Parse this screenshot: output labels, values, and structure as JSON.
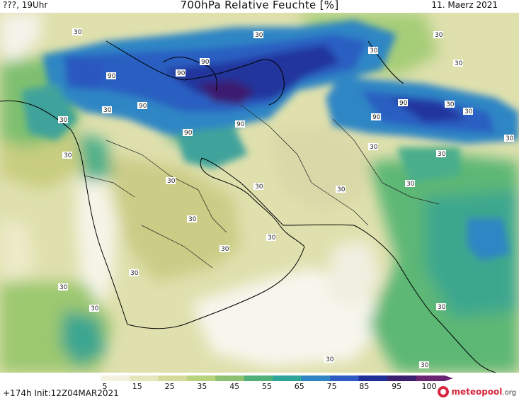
{
  "header": {
    "left_label": "???, 19Uhr",
    "title": "700hPa Relative Feuchte [%]",
    "date": "11. Maerz 2021"
  },
  "footer": {
    "run_info": "+174h  Init:12Z04MAR2021",
    "logo_text": "meteopool",
    "logo_suffix": ".org"
  },
  "colorbar": {
    "tick_labels": [
      "5",
      "15",
      "25",
      "35",
      "45",
      "55",
      "65",
      "75",
      "85",
      "95",
      "100"
    ],
    "colors": [
      "#ffffff",
      "#f3f1e0",
      "#e6e6bc",
      "#d5d99a",
      "#b9d27c",
      "#8cc26f",
      "#4fb07a",
      "#2fa59a",
      "#2f85c3",
      "#2d5bc2",
      "#1f2f9a",
      "#3b1e6e",
      "#6a2472"
    ]
  },
  "map": {
    "contour_labels": [
      "30",
      "30",
      "90",
      "90",
      "90",
      "90",
      "90",
      "90",
      "90",
      "90",
      "30",
      "30",
      "30",
      "30",
      "30",
      "30",
      "30",
      "30",
      "30",
      "30",
      "30",
      "30",
      "30",
      "30",
      "30",
      "30",
      "30",
      "30",
      "30",
      "30",
      "30",
      "30",
      "30",
      "30"
    ]
  }
}
